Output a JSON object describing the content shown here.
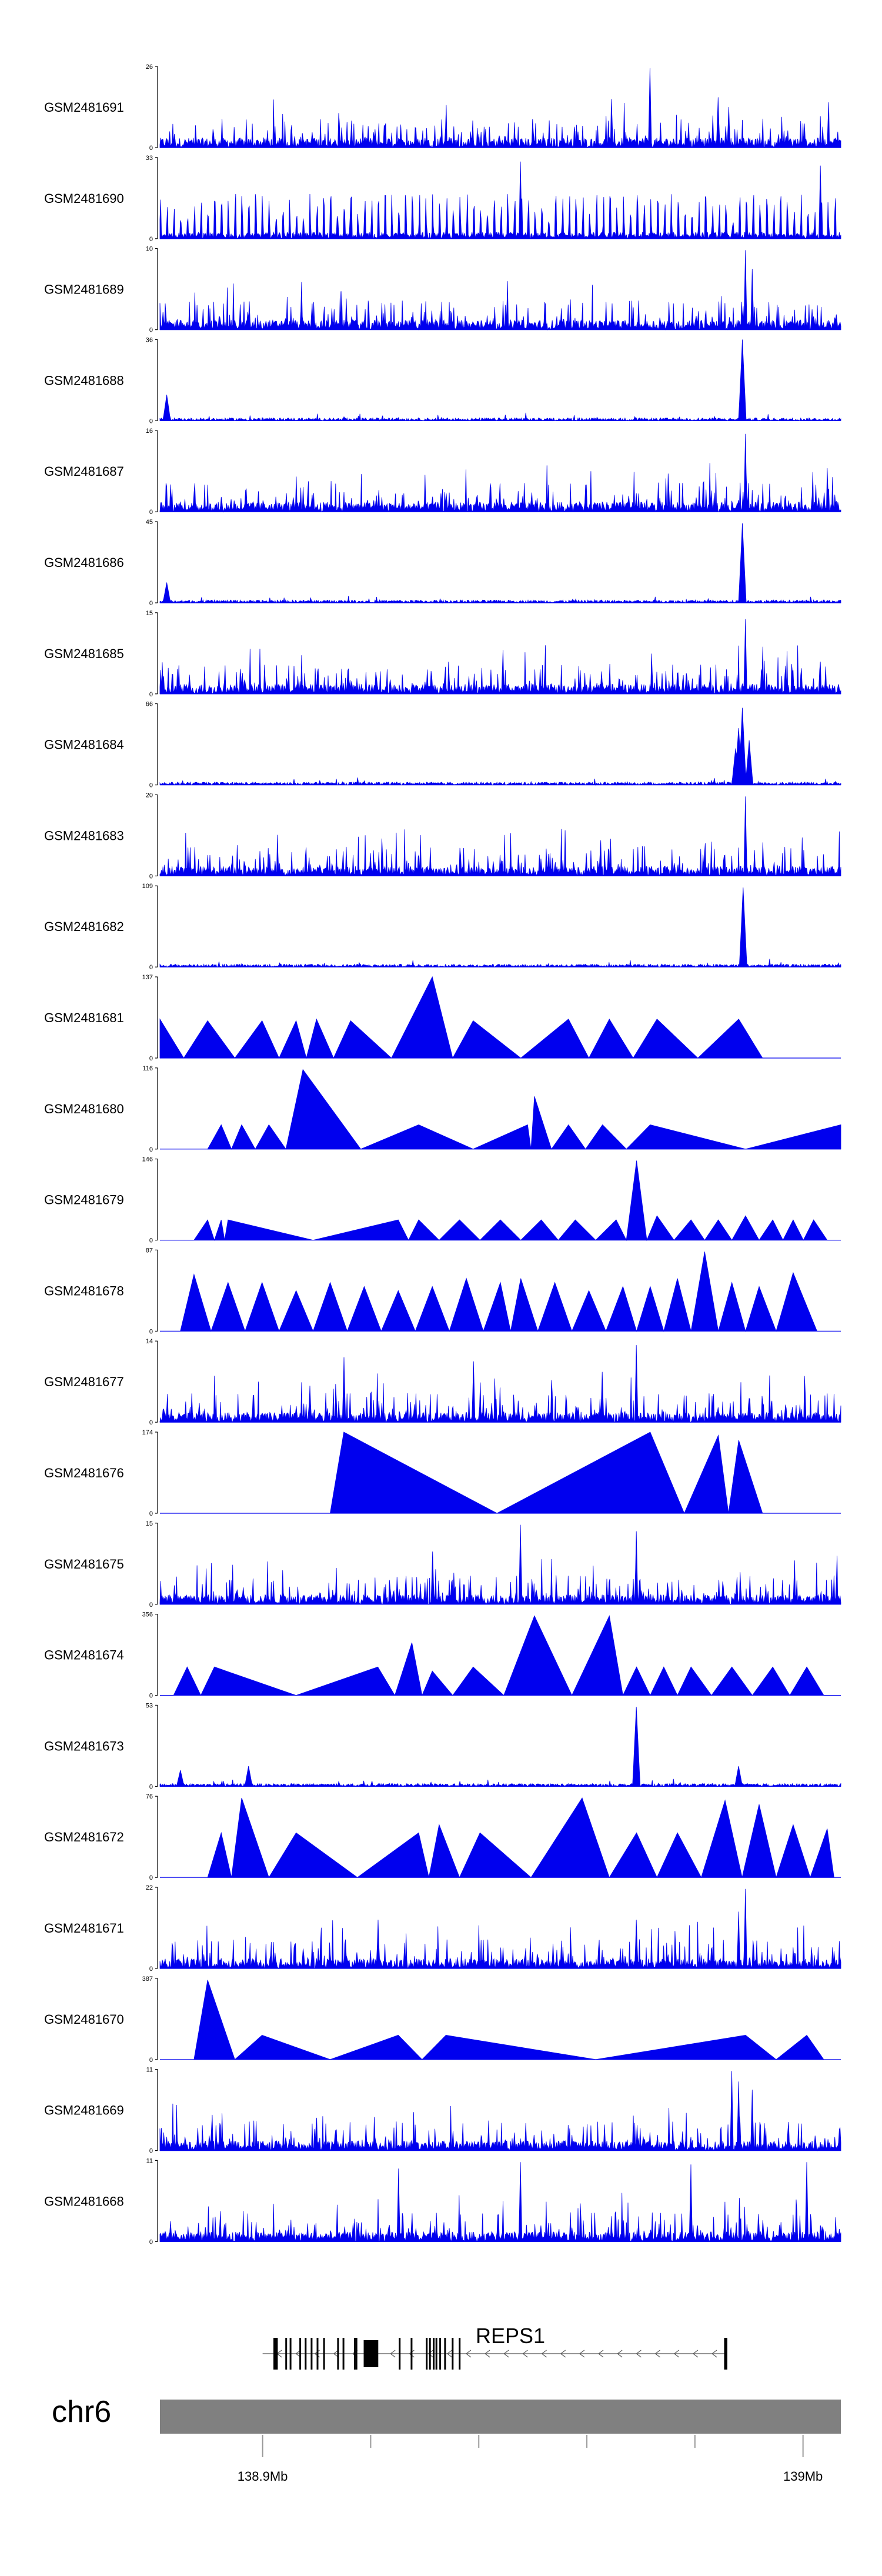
{
  "chart_data": {
    "type": "area",
    "title": "",
    "xlabel": "",
    "ylabel": "",
    "region": {
      "chromosome": "chr6",
      "start": 138881000,
      "end": 139007000
    },
    "x_ticks": [
      {
        "value": 138900000,
        "label": "138.9Mb",
        "labeled": true
      },
      {
        "value": 138920000,
        "label": "",
        "labeled": false
      },
      {
        "value": 138940000,
        "label": "",
        "labeled": false
      },
      {
        "value": 138960000,
        "label": "",
        "labeled": false
      },
      {
        "value": 138980000,
        "label": "",
        "labeled": false
      },
      {
        "value": 139000000,
        "label": "139Mb",
        "labeled": true
      }
    ],
    "series_color": "#0000ee",
    "series": [
      {
        "name": "GSM2481691",
        "ymax": 26,
        "ymin": 0,
        "pattern": "dense",
        "peaks": [
          [
            0.72,
            0.98
          ],
          [
            0.82,
            0.62
          ],
          [
            0.835,
            0.5
          ]
        ]
      },
      {
        "name": "GSM2481690",
        "ymax": 33,
        "ymin": 0,
        "pattern": "spiky",
        "peaks": [
          [
            0.53,
            0.95
          ],
          [
            0.97,
            0.9
          ],
          [
            0.28,
            0.5
          ]
        ]
      },
      {
        "name": "GSM2481689",
        "ymax": 10,
        "ymin": 0,
        "pattern": "dense",
        "peaks": [
          [
            0.86,
            0.98
          ],
          [
            0.87,
            0.75
          ]
        ]
      },
      {
        "name": "GSM2481688",
        "ymax": 36,
        "ymin": 0,
        "pattern": "sparse",
        "peaks": [
          [
            0.855,
            1.0
          ],
          [
            0.01,
            0.32
          ]
        ]
      },
      {
        "name": "GSM2481687",
        "ymax": 16,
        "ymin": 0,
        "pattern": "dense",
        "peaks": [
          [
            0.86,
            0.96
          ]
        ]
      },
      {
        "name": "GSM2481686",
        "ymax": 45,
        "ymin": 0,
        "pattern": "sparse",
        "peaks": [
          [
            0.855,
            0.98
          ],
          [
            0.01,
            0.25
          ]
        ]
      },
      {
        "name": "GSM2481685",
        "ymax": 15,
        "ymin": 0,
        "pattern": "dense",
        "peaks": [
          [
            0.86,
            0.92
          ]
        ]
      },
      {
        "name": "GSM2481684",
        "ymax": 66,
        "ymin": 0,
        "pattern": "sparse",
        "peaks": [
          [
            0.855,
            0.95
          ],
          [
            0.85,
            0.7
          ],
          [
            0.845,
            0.45
          ],
          [
            0.865,
            0.55
          ]
        ]
      },
      {
        "name": "GSM2481683",
        "ymax": 20,
        "ymin": 0,
        "pattern": "dense",
        "peaks": [
          [
            0.86,
            0.98
          ]
        ]
      },
      {
        "name": "GSM2481682",
        "ymax": 109,
        "ymin": 0,
        "pattern": "sparse",
        "peaks": [
          [
            0.857,
            0.98
          ]
        ]
      },
      {
        "name": "GSM2481681",
        "ymax": 137,
        "ymin": 0,
        "pattern": "tri",
        "peaks": [
          [
            0.0,
            0.48
          ],
          [
            0.07,
            0.46
          ],
          [
            0.15,
            0.46
          ],
          [
            0.2,
            0.46
          ],
          [
            0.23,
            0.48
          ],
          [
            0.28,
            0.46
          ],
          [
            0.4,
            1.0
          ],
          [
            0.46,
            0.46
          ],
          [
            0.6,
            0.48
          ],
          [
            0.66,
            0.48
          ],
          [
            0.73,
            0.48
          ],
          [
            0.85,
            0.48
          ]
        ]
      },
      {
        "name": "GSM2481680",
        "ymax": 116,
        "ymin": 0,
        "pattern": "tri",
        "peaks": [
          [
            0.09,
            0.3
          ],
          [
            0.12,
            0.3
          ],
          [
            0.16,
            0.3
          ],
          [
            0.21,
            0.98
          ],
          [
            0.38,
            0.3
          ],
          [
            0.54,
            0.3
          ],
          [
            0.55,
            0.65
          ],
          [
            0.6,
            0.3
          ],
          [
            0.65,
            0.3
          ],
          [
            0.72,
            0.3
          ],
          [
            1.0,
            0.3
          ]
        ]
      },
      {
        "name": "GSM2481679",
        "ymax": 146,
        "ymin": 0,
        "pattern": "tri",
        "peaks": [
          [
            0.07,
            0.25
          ],
          [
            0.09,
            0.25
          ],
          [
            0.1,
            0.25
          ],
          [
            0.35,
            0.25
          ],
          [
            0.38,
            0.25
          ],
          [
            0.44,
            0.25
          ],
          [
            0.5,
            0.25
          ],
          [
            0.56,
            0.25
          ],
          [
            0.61,
            0.25
          ],
          [
            0.67,
            0.25
          ],
          [
            0.7,
            0.98
          ],
          [
            0.73,
            0.3
          ],
          [
            0.78,
            0.25
          ],
          [
            0.82,
            0.25
          ],
          [
            0.86,
            0.3
          ],
          [
            0.9,
            0.25
          ],
          [
            0.93,
            0.25
          ],
          [
            0.96,
            0.25
          ]
        ]
      },
      {
        "name": "GSM2481678",
        "ymax": 87,
        "ymin": 0,
        "pattern": "tri",
        "peaks": [
          [
            0.05,
            0.7
          ],
          [
            0.1,
            0.6
          ],
          [
            0.15,
            0.6
          ],
          [
            0.2,
            0.5
          ],
          [
            0.25,
            0.6
          ],
          [
            0.3,
            0.55
          ],
          [
            0.35,
            0.5
          ],
          [
            0.4,
            0.55
          ],
          [
            0.45,
            0.65
          ],
          [
            0.5,
            0.6
          ],
          [
            0.53,
            0.65
          ],
          [
            0.58,
            0.6
          ],
          [
            0.63,
            0.5
          ],
          [
            0.68,
            0.55
          ],
          [
            0.72,
            0.55
          ],
          [
            0.76,
            0.65
          ],
          [
            0.8,
            0.98
          ],
          [
            0.84,
            0.6
          ],
          [
            0.88,
            0.55
          ],
          [
            0.93,
            0.72
          ]
        ]
      },
      {
        "name": "GSM2481677",
        "ymax": 14,
        "ymin": 0,
        "pattern": "dense",
        "peaks": [
          [
            0.7,
            0.95
          ],
          [
            0.27,
            0.8
          ],
          [
            0.46,
            0.75
          ],
          [
            0.65,
            0.62
          ],
          [
            0.22,
            0.45
          ]
        ]
      },
      {
        "name": "GSM2481676",
        "ymax": 174,
        "ymin": 0,
        "pattern": "tri",
        "peaks": [
          [
            0.27,
            1.0
          ],
          [
            0.72,
            1.0
          ],
          [
            0.82,
            0.96
          ],
          [
            0.85,
            0.9
          ]
        ]
      },
      {
        "name": "GSM2481675",
        "ymax": 15,
        "ymin": 0,
        "pattern": "dense",
        "peaks": [
          [
            0.53,
            0.98
          ],
          [
            0.7,
            0.9
          ],
          [
            0.4,
            0.65
          ]
        ]
      },
      {
        "name": "GSM2481674",
        "ymax": 356,
        "ymin": 0,
        "pattern": "tri",
        "peaks": [
          [
            0.04,
            0.35
          ],
          [
            0.08,
            0.35
          ],
          [
            0.32,
            0.35
          ],
          [
            0.37,
            0.65
          ],
          [
            0.4,
            0.3
          ],
          [
            0.46,
            0.35
          ],
          [
            0.55,
            0.98
          ],
          [
            0.66,
            0.98
          ],
          [
            0.7,
            0.35
          ],
          [
            0.74,
            0.35
          ],
          [
            0.78,
            0.35
          ],
          [
            0.84,
            0.35
          ],
          [
            0.9,
            0.35
          ],
          [
            0.95,
            0.35
          ]
        ]
      },
      {
        "name": "GSM2481673",
        "ymax": 53,
        "ymin": 0,
        "pattern": "sparse",
        "peaks": [
          [
            0.7,
            0.98
          ],
          [
            0.85,
            0.25
          ],
          [
            0.03,
            0.2
          ],
          [
            0.13,
            0.25
          ]
        ]
      },
      {
        "name": "GSM2481672",
        "ymax": 76,
        "ymin": 0,
        "pattern": "tri",
        "peaks": [
          [
            0.09,
            0.55
          ],
          [
            0.12,
            0.98
          ],
          [
            0.2,
            0.55
          ],
          [
            0.38,
            0.55
          ],
          [
            0.41,
            0.65
          ],
          [
            0.47,
            0.55
          ],
          [
            0.62,
            0.98
          ],
          [
            0.7,
            0.55
          ],
          [
            0.76,
            0.55
          ],
          [
            0.83,
            0.95
          ],
          [
            0.88,
            0.9
          ],
          [
            0.93,
            0.65
          ],
          [
            0.98,
            0.6
          ]
        ]
      },
      {
        "name": "GSM2481671",
        "ymax": 22,
        "ymin": 0,
        "pattern": "dense",
        "peaks": [
          [
            0.86,
            0.98
          ],
          [
            0.85,
            0.7
          ],
          [
            0.32,
            0.6
          ],
          [
            0.7,
            0.6
          ]
        ]
      },
      {
        "name": "GSM2481670",
        "ymax": 387,
        "ymin": 0,
        "pattern": "tri",
        "peaks": [
          [
            0.07,
            0.98
          ],
          [
            0.15,
            0.3
          ],
          [
            0.35,
            0.3
          ],
          [
            0.42,
            0.3
          ],
          [
            0.86,
            0.3
          ],
          [
            0.95,
            0.3
          ]
        ]
      },
      {
        "name": "GSM2481669",
        "ymax": 11,
        "ymin": 0,
        "pattern": "dense",
        "peaks": [
          [
            0.84,
            0.98
          ],
          [
            0.85,
            0.85
          ],
          [
            0.87,
            0.75
          ]
        ]
      },
      {
        "name": "GSM2481668",
        "ymax": 11,
        "ymin": 0,
        "pattern": "dense",
        "peaks": [
          [
            0.53,
            0.98
          ],
          [
            0.78,
            0.95
          ],
          [
            0.95,
            0.98
          ],
          [
            0.35,
            0.9
          ]
        ]
      }
    ],
    "gene_track": {
      "name": "REPS1",
      "strand": "-",
      "start": 138900000,
      "end": 138981000,
      "exons": [
        [
          138902000,
          138902800
        ],
        [
          138904200,
          138904350
        ],
        [
          138905000,
          138905150
        ],
        [
          138906800,
          138906950
        ],
        [
          138907800,
          138908000
        ],
        [
          138908900,
          138909050
        ],
        [
          138910000,
          138910150
        ],
        [
          138911200,
          138911400
        ],
        [
          138913800,
          138914000
        ],
        [
          138914800,
          138915000
        ],
        [
          138916900,
          138917100
        ],
        [
          138917200,
          138917400
        ],
        [
          138918700,
          138921400
        ],
        [
          138925200,
          138925400
        ],
        [
          138927400,
          138927600
        ],
        [
          138930200,
          138930400
        ],
        [
          138930800,
          138931000
        ],
        [
          138931500,
          138931700
        ],
        [
          138932000,
          138932200
        ],
        [
          138932700,
          138932900
        ],
        [
          138933600,
          138933800
        ],
        [
          138935000,
          138935200
        ],
        [
          138936300,
          138936500
        ],
        [
          138985400,
          138986000
        ]
      ]
    },
    "chromosome_label": "chr6"
  }
}
